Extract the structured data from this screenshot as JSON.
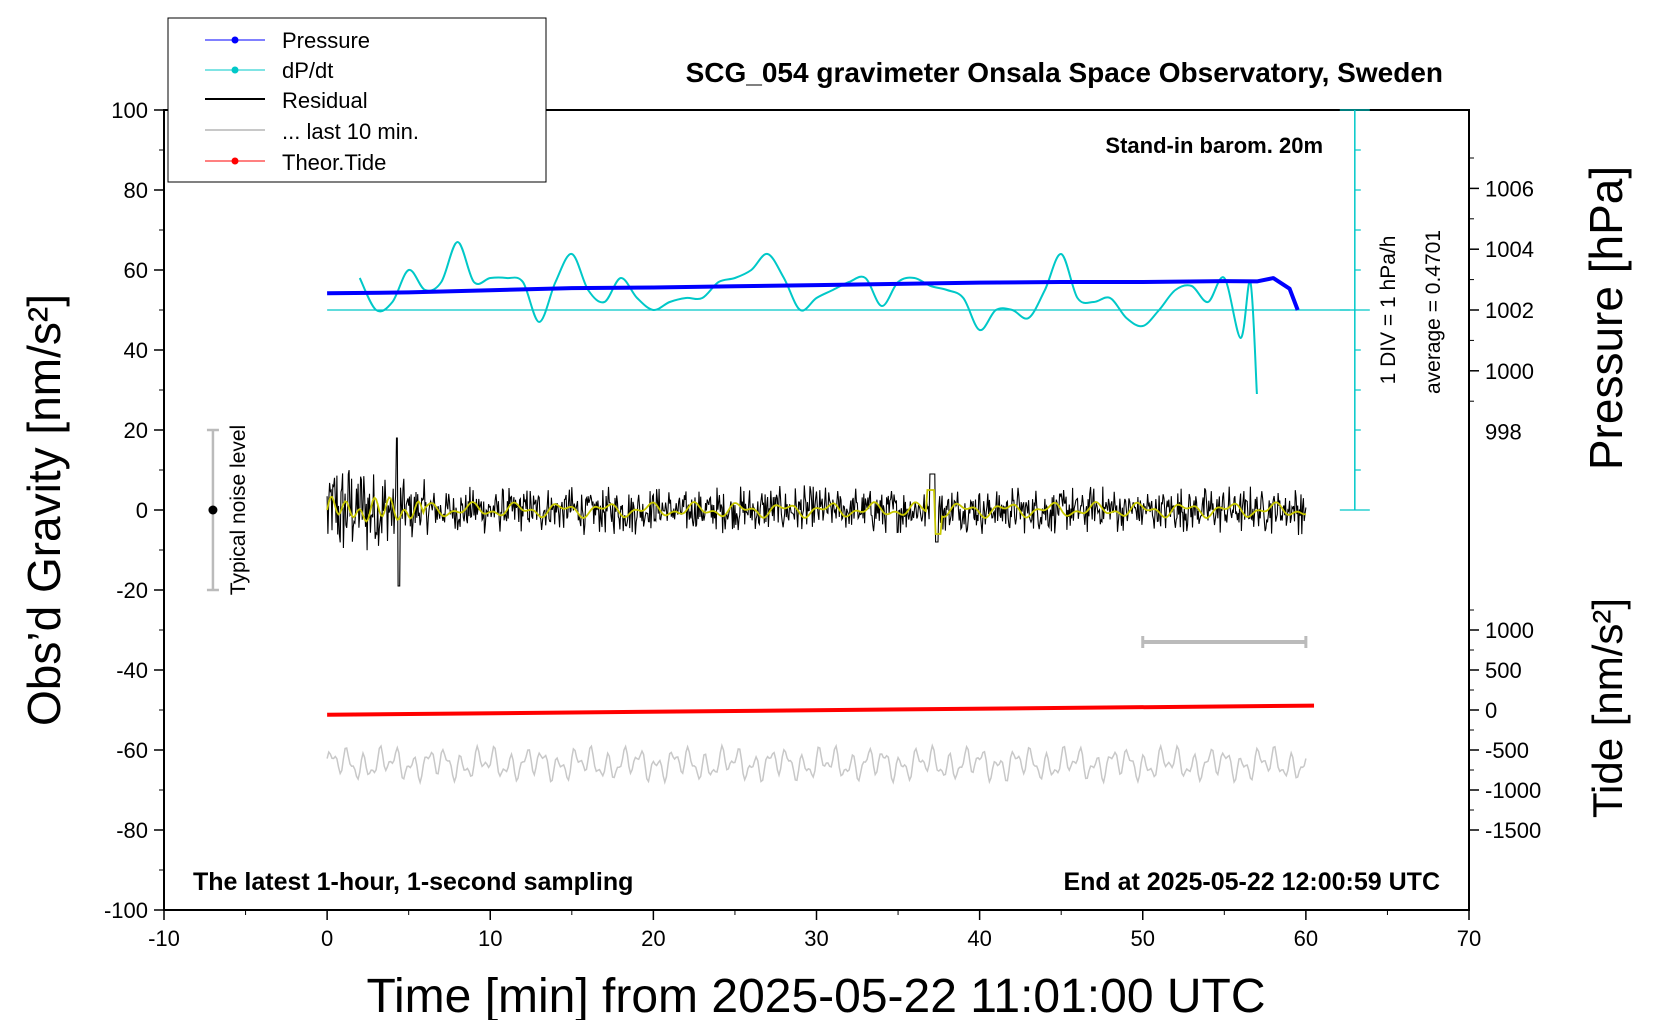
{
  "chart_data": {
    "type": "line",
    "title": "SCG_054 gravimeter Onsala Space Observatory, Sweden",
    "xlabel": "Time [min] from 2025-05-22 11:01:00 UTC",
    "ylabel_left": "Obs’d Gravity [nm/s²]",
    "ylabel_right_top": "Pressure [hPa]",
    "ylabel_right_bottom": "Tide [nm/s²]",
    "xlim": [
      -10,
      70
    ],
    "ylim": [
      -100,
      100
    ],
    "pressure_ylim": [
      1002,
      1007.4
    ],
    "tide_ylim": [
      -1500,
      1500
    ],
    "x_ticks": [
      "-10",
      "0",
      "10",
      "20",
      "30",
      "40",
      "50",
      "60",
      "70"
    ],
    "y_ticks": [
      "100",
      "80",
      "60",
      "40",
      "20",
      "0",
      "-20",
      "-40",
      "-60",
      "-80",
      "-100"
    ],
    "pressure_ticks": [
      "1006",
      "1004",
      "1002",
      "1000",
      "998"
    ],
    "tide_ticks": [
      "1000",
      "500",
      "0",
      "-500",
      "-1000",
      "-1500"
    ],
    "legend": {
      "position": "top-left",
      "entries": [
        "Pressure",
        "dP/dt",
        "Residual",
        "... last 10 min.",
        "Theor.Tide"
      ]
    },
    "annotations": {
      "barometer": "Stand-in barom. 20m",
      "div": "1 DIV = 1 hPa/h",
      "average": "average = 0.4701",
      "noise": "Typical noise level",
      "latest": "The latest 1-hour, 1-second sampling",
      "end": "End at 2025-05-22 12:00:59 UTC"
    },
    "noise_bar": {
      "x": -7,
      "low": -20,
      "high": 20
    },
    "series": [
      {
        "name": "Pressure",
        "color": "#0000ff",
        "unit": "hPa",
        "x": [
          0,
          5,
          10,
          15,
          20,
          25,
          30,
          35,
          40,
          45,
          50,
          55,
          57,
          58,
          59,
          59.5
        ],
        "values": [
          1002.55,
          1002.58,
          1002.65,
          1002.72,
          1002.74,
          1002.78,
          1002.82,
          1002.86,
          1002.9,
          1002.92,
          1002.92,
          1002.95,
          1002.94,
          1003.05,
          1002.7,
          1002.0
        ]
      },
      {
        "name": "dP/dt",
        "color": "#00c8c8",
        "unit": "y-axis",
        "x": [
          2,
          3,
          4,
          5,
          6,
          7,
          8,
          9,
          10,
          11,
          12,
          13,
          14,
          15,
          16,
          17,
          18,
          19,
          20,
          21,
          22,
          23,
          24,
          25,
          26,
          27,
          28,
          29,
          30,
          31,
          32,
          33,
          34,
          35,
          36,
          37,
          38,
          39,
          40,
          41,
          42,
          43,
          44,
          45,
          46,
          47,
          48,
          49,
          50,
          51,
          52,
          53,
          54,
          55,
          56,
          56.6,
          57
        ],
        "values": [
          58,
          50,
          52,
          60,
          55,
          57,
          67,
          57,
          58,
          58,
          57,
          47,
          57,
          64,
          55,
          52,
          58,
          53,
          50,
          52,
          53,
          53,
          57,
          58,
          60,
          64,
          58,
          50,
          53,
          55,
          57,
          58,
          51,
          57,
          58,
          56,
          55,
          53,
          45,
          50,
          50,
          48,
          55,
          64,
          53,
          52,
          53,
          48,
          46,
          50,
          55,
          56,
          52,
          58,
          43,
          57,
          29
        ]
      },
      {
        "name": "Residual",
        "color": "#000000",
        "unit": "nm/s²",
        "x": [
          0,
          60
        ],
        "values": [
          0,
          0
        ],
        "peak_to_peak": [
          -19,
          18
        ]
      },
      {
        "name": "... last 10 min.",
        "color": "#c8c8c8",
        "unit": "nm/s²",
        "x": [
          0,
          60
        ],
        "values": [
          -63.5,
          -63.5
        ]
      },
      {
        "name": "Theor.Tide",
        "color": "#ff0000",
        "unit": "nm/s² (tide axis)",
        "x": [
          0,
          60.5
        ],
        "values": [
          -60,
          55
        ]
      }
    ],
    "ten_min_bar": {
      "x": [
        50,
        60
      ],
      "y": -33
    }
  }
}
